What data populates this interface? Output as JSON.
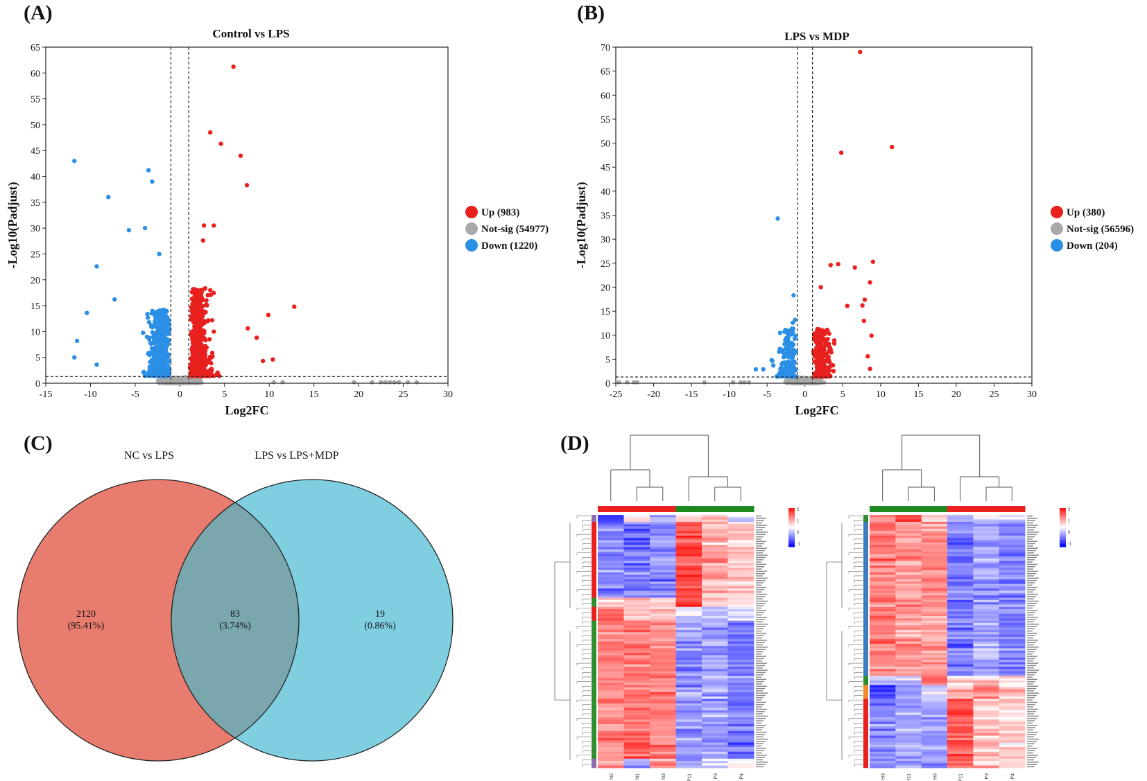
{
  "panels": {
    "a": "(A)",
    "b": "(B)",
    "c": "(C)",
    "d": "(D)"
  },
  "colors": {
    "up": "#e8201e",
    "notsig": "#a9a9a9",
    "down": "#2b8fe6",
    "venn_left": "#e87c6e",
    "venn_right": "#7fcfe0",
    "venn_overlap": "#7aa6ae"
  },
  "chart_data": [
    {
      "type": "scatter",
      "title": "Control vs LPS",
      "xlabel": "Log2FC",
      "ylabel": "-Log10(Padjust)",
      "xlim": [
        -15,
        30
      ],
      "ylim": [
        0,
        65
      ],
      "xticks": [
        -15,
        -10,
        -5,
        0,
        5,
        10,
        15,
        20,
        25,
        30
      ],
      "yticks": [
        0,
        5,
        10,
        15,
        20,
        25,
        30,
        35,
        40,
        45,
        50,
        55,
        60,
        65
      ],
      "fc_threshold": 1,
      "p_threshold": 1.3,
      "legend": [
        {
          "key": "up",
          "label": "Up (983)"
        },
        {
          "key": "notsig",
          "label": "Not-sig (54977)"
        },
        {
          "key": "down",
          "label": "Down (1220)"
        }
      ],
      "highlight_points": {
        "up": [
          [
            6,
            61.2
          ],
          [
            3.4,
            48.5
          ],
          [
            4.6,
            46.3
          ],
          [
            6.8,
            44
          ],
          [
            7.5,
            38.3
          ],
          [
            2.7,
            30.5
          ],
          [
            3.8,
            30.5
          ],
          [
            2.6,
            27.6
          ],
          [
            12.8,
            14.8
          ],
          [
            9.9,
            13.2
          ],
          [
            9.3,
            4.3
          ],
          [
            10.4,
            4.6
          ],
          [
            8.6,
            8.8
          ],
          [
            7.6,
            10.6
          ]
        ],
        "down": [
          [
            -11.8,
            43
          ],
          [
            -3.5,
            41.2
          ],
          [
            -3.1,
            39
          ],
          [
            -8,
            36
          ],
          [
            -3.9,
            30
          ],
          [
            -5.7,
            29.6
          ],
          [
            -9.3,
            22.6
          ],
          [
            -10.4,
            13.6
          ],
          [
            -11.5,
            8.2
          ],
          [
            -11.8,
            5
          ],
          [
            -9.3,
            3.6
          ],
          [
            -7.3,
            16.2
          ],
          [
            -2.3,
            25
          ]
        ]
      },
      "bulk": {
        "up_count": 600,
        "down_count": 650,
        "notsig_count": 700
      },
      "notsig_tail": [
        [
          21.5,
          0.2
        ],
        [
          22.5,
          0.2
        ],
        [
          23,
          0.2
        ],
        [
          23.5,
          0.2
        ],
        [
          24,
          0.2
        ],
        [
          24.5,
          0.2
        ],
        [
          25.5,
          0.2
        ],
        [
          26.5,
          0.2
        ],
        [
          19.5,
          0.2
        ],
        [
          11.5,
          0.2
        ],
        [
          10.5,
          0.2
        ]
      ]
    },
    {
      "type": "scatter",
      "title": "LPS vs MDP",
      "xlabel": "Log2FC",
      "ylabel": "-Log10(Padjust)",
      "xlim": [
        -25,
        30
      ],
      "ylim": [
        0,
        70
      ],
      "xticks": [
        -25,
        -20,
        -15,
        -10,
        -5,
        0,
        5,
        10,
        15,
        20,
        25,
        30
      ],
      "yticks": [
        0,
        5,
        10,
        15,
        20,
        25,
        30,
        35,
        40,
        45,
        50,
        55,
        60,
        65,
        70
      ],
      "fc_threshold": 1,
      "p_threshold": 1.3,
      "legend": [
        {
          "key": "up",
          "label": "Up (380)"
        },
        {
          "key": "notsig",
          "label": "Not-sig (56596)"
        },
        {
          "key": "down",
          "label": "Down (204)"
        }
      ],
      "highlight_points": {
        "up": [
          [
            7.3,
            69
          ],
          [
            11.5,
            49.2
          ],
          [
            4.8,
            48
          ],
          [
            3.4,
            24.6
          ],
          [
            4.4,
            24.8
          ],
          [
            6.6,
            24.1
          ],
          [
            9,
            25.3
          ],
          [
            8.6,
            21
          ],
          [
            7.9,
            17.4
          ],
          [
            7.6,
            16.2
          ],
          [
            7.8,
            13
          ],
          [
            8.8,
            9.9
          ],
          [
            2.1,
            20
          ],
          [
            5.6,
            16.1
          ],
          [
            8.3,
            5.6
          ],
          [
            8.6,
            3
          ]
        ],
        "down": [
          [
            -3.6,
            34.3
          ],
          [
            -1.5,
            18.3
          ],
          [
            -1.3,
            13.2
          ],
          [
            -1.6,
            12.6
          ],
          [
            -2.2,
            9.6
          ],
          [
            -4.4,
            4.8
          ],
          [
            -5.5,
            2.9
          ],
          [
            -6.5,
            2.9
          ]
        ]
      },
      "bulk": {
        "up_count": 260,
        "down_count": 150,
        "notsig_count": 600
      },
      "notsig_tail": [
        [
          -24.6,
          0.2
        ],
        [
          -23.5,
          0.2
        ],
        [
          -22.6,
          0.2
        ],
        [
          -22.2,
          0.2
        ],
        [
          -13.3,
          0.2
        ],
        [
          -9.5,
          0.2
        ],
        [
          -8.5,
          0.2
        ],
        [
          -8,
          0.2
        ],
        [
          -7.4,
          0.2
        ]
      ]
    },
    {
      "type": "venn",
      "sets": [
        {
          "name": "NC vs LPS",
          "only_count": "2120",
          "only_pct": "(95.41%)"
        },
        {
          "name": "LPS vs LPS+MDP",
          "only_count": "19",
          "only_pct": "(0.86%)"
        }
      ],
      "overlap": {
        "count": "83",
        "pct": "(3.74%)"
      }
    },
    {
      "type": "heatmap",
      "left": {
        "rows": 110,
        "columns": [
          "N2",
          "N1",
          "N3",
          "P11",
          "P3",
          "P4"
        ],
        "column_groups": [
          "red",
          "red",
          "red",
          "green",
          "green",
          "green"
        ],
        "row_groups": [
          {
            "color": "#8c6bb1",
            "rows": 3
          },
          {
            "color": "#e8201e",
            "rows": 33
          },
          {
            "color": "#2f8f2f",
            "rows": 4
          },
          {
            "color": "#e8201e",
            "rows": 6
          },
          {
            "color": "#2f8f2f",
            "rows": 60
          },
          {
            "color": "#8c6bb1",
            "rows": 4
          }
        ],
        "blocks": [
          {
            "from": 0,
            "to": 3,
            "pattern": [
              -1.5,
              0.3,
              -0.8,
              0.5,
              0.8,
              -0.2
            ]
          },
          {
            "from": 3,
            "to": 36,
            "pattern": [
              -0.9,
              -1.1,
              -0.9,
              1.6,
              0.7,
              0.5
            ]
          },
          {
            "from": 36,
            "to": 40,
            "pattern": [
              0.2,
              0.5,
              0.3,
              1.8,
              0.2,
              0.6
            ]
          },
          {
            "from": 40,
            "to": 46,
            "pattern": [
              1.4,
              0.3,
              0.5,
              -0.2,
              -0.4,
              -0.3
            ]
          },
          {
            "from": 46,
            "to": 106,
            "pattern": [
              1.0,
              1.2,
              1.1,
              -0.9,
              -0.7,
              -1.0
            ]
          },
          {
            "from": 106,
            "to": 110,
            "pattern": [
              0.8,
              -0.6,
              1.0,
              -0.8,
              -0.3,
              0.2
            ]
          }
        ],
        "legend_ticks": [
          "2",
          "1",
          "0",
          "-1"
        ]
      },
      "right": {
        "rows": 110,
        "columns": [
          "H3",
          "H11",
          "H9",
          "P11",
          "P3",
          "P4"
        ],
        "column_groups": [
          "green",
          "green",
          "green",
          "red",
          "red",
          "red"
        ],
        "row_groups": [
          {
            "color": "#2f8f2f",
            "rows": 3
          },
          {
            "color": "#3b7dbf",
            "rows": 67
          },
          {
            "color": "#2f8f2f",
            "rows": 4
          },
          {
            "color": "#f28c28",
            "rows": 6
          },
          {
            "color": "#e8201e",
            "rows": 30
          }
        ],
        "blocks": [
          {
            "from": 0,
            "to": 3,
            "pattern": [
              0.6,
              1.8,
              0.4,
              -0.6,
              -0.2,
              -0.5
            ]
          },
          {
            "from": 3,
            "to": 70,
            "pattern": [
              1.1,
              0.9,
              0.9,
              -1.1,
              -0.7,
              -1.0
            ]
          },
          {
            "from": 70,
            "to": 74,
            "pattern": [
              -0.4,
              -0.2,
              1.2,
              0.4,
              0.6,
              0.3
            ]
          },
          {
            "from": 74,
            "to": 80,
            "pattern": [
              -1.4,
              -0.8,
              -0.3,
              0.6,
              1.0,
              0.4
            ]
          },
          {
            "from": 80,
            "to": 110,
            "pattern": [
              -0.9,
              -0.7,
              -0.8,
              1.5,
              0.5,
              0.4
            ]
          }
        ],
        "legend_ticks": [
          "2",
          "1",
          "0",
          "-1"
        ]
      }
    }
  ]
}
